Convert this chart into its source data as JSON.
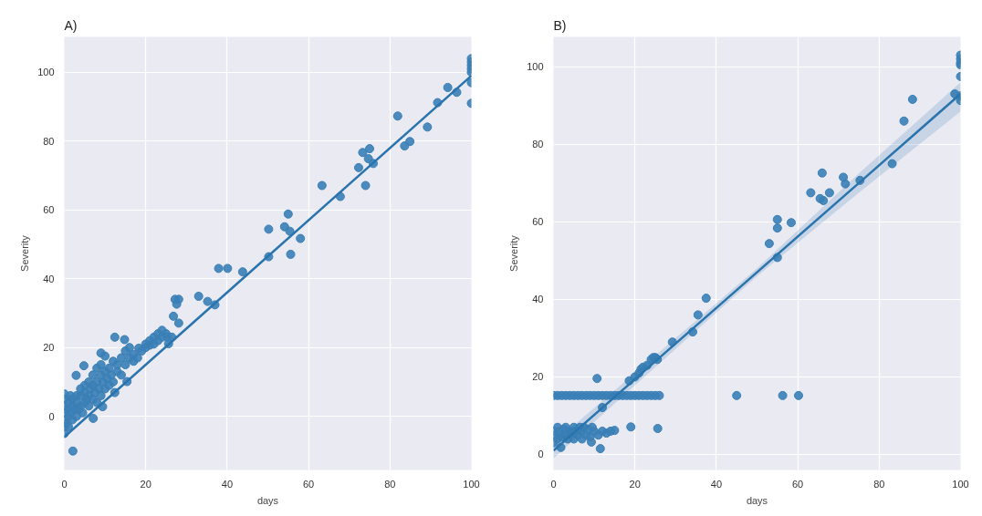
{
  "chart_data": [
    {
      "type": "scatter",
      "title": "A)",
      "xlabel": "days",
      "ylabel": "Severity",
      "xlim": [
        0,
        100
      ],
      "ylim": [
        -15.6,
        110.3
      ],
      "xticks": [
        0,
        20,
        40,
        60,
        80,
        100
      ],
      "yticks": [
        0,
        20,
        40,
        60,
        80,
        100
      ],
      "grid": true,
      "series": [
        {
          "marker": "circle",
          "color": "#3a7fb6",
          "x": [
            2.1,
            7.1,
            9.4,
            2.9,
            4.8,
            12.4,
            14.8,
            9,
            10,
            12.4,
            15.4,
            18.3,
            21,
            23,
            25.3,
            25.6,
            26.4,
            26.8,
            27.2,
            28.1,
            27.6,
            28.1,
            33,
            35.2,
            37,
            37.9,
            40.1,
            43.8,
            50.2,
            50.2,
            54.1,
            55,
            55.4,
            55.6,
            58,
            63.3,
            67.8,
            72.3,
            73.3,
            74,
            75,
            74.7,
            75.9,
            81.9,
            83.6,
            84.9,
            89.2,
            91.7,
            94.2,
            96.4,
            100,
            100,
            100,
            100,
            100,
            100,
            100,
            0,
            0,
            0,
            0,
            0,
            0,
            0,
            0.5,
            0.5,
            1,
            1,
            1,
            1.5,
            1.5,
            2,
            2,
            2,
            2.5,
            3,
            3,
            3,
            3.5,
            4,
            4,
            4,
            4.5,
            5,
            5,
            5,
            5.5,
            6,
            6,
            6,
            6.5,
            7,
            7,
            7,
            7.5,
            8,
            8,
            8,
            8.5,
            9,
            9,
            9,
            9.5,
            10,
            10,
            10.5,
            11,
            11,
            11.5,
            12,
            12,
            13,
            13,
            14,
            14,
            15,
            15,
            16,
            16,
            17,
            17,
            18,
            19,
            20,
            20,
            21,
            22,
            22,
            23,
            24,
            24,
            25
          ],
          "values": [
            -10.1,
            -0.6,
            2.8,
            11.9,
            14.7,
            23,
            22.3,
            18.4,
            17.5,
            6.9,
            10.1,
            19.8,
            20.7,
            22,
            23,
            21.1,
            23,
            29.1,
            34,
            34,
            32.6,
            27.1,
            34.9,
            33.4,
            32.4,
            43,
            43,
            42,
            54.4,
            46.4,
            55.1,
            58.8,
            53.8,
            47.1,
            51.7,
            67.1,
            63.9,
            72.3,
            76.7,
            67.1,
            77.8,
            74.9,
            73.5,
            87.3,
            78.6,
            79.9,
            84.1,
            91.2,
            95.6,
            94.2,
            91,
            97,
            100,
            101,
            102,
            103,
            104,
            -5,
            -3,
            -1,
            1,
            3,
            5,
            6.5,
            -2,
            2,
            0,
            4,
            -3,
            1,
            6,
            -1,
            3,
            5,
            2,
            0,
            4,
            6,
            2,
            3,
            6,
            8,
            1,
            4,
            7,
            9,
            5,
            3,
            6,
            10,
            8,
            5,
            9,
            12,
            7,
            4,
            10,
            14,
            8,
            6,
            12,
            15,
            10,
            8,
            13,
            11,
            9,
            14,
            12,
            10,
            16,
            13,
            15,
            12,
            17,
            15,
            19,
            17,
            20,
            16,
            18,
            17,
            19,
            21,
            20,
            22,
            21,
            23,
            24,
            25,
            23,
            24
          ]
        },
        {
          "type": "line",
          "marker": "none",
          "color": "#2a74ad",
          "x": [
            0,
            100
          ],
          "values": [
            -6,
            99
          ]
        }
      ]
    },
    {
      "type": "scatter",
      "title": "B)",
      "xlabel": "days",
      "ylabel": "Severity",
      "xlim": [
        0,
        100
      ],
      "ylim": [
        -4,
        107.7
      ],
      "xticks": [
        0,
        20,
        40,
        60,
        80,
        100
      ],
      "yticks": [
        0,
        20,
        40,
        60,
        80,
        100
      ],
      "grid": true,
      "series": [
        {
          "marker": "circle",
          "color": "#3a7fb6",
          "x": [
            0,
            1,
            2,
            3,
            4,
            5,
            6,
            7,
            8,
            9,
            10,
            11,
            12,
            13,
            14,
            15,
            16,
            17,
            18,
            19,
            20,
            21,
            22,
            23,
            24,
            25,
            26,
            45,
            56.3,
            60.2,
            0,
            0,
            0.5,
            1,
            1,
            1.5,
            2,
            2.5,
            3,
            3,
            3.5,
            4,
            4.5,
            5,
            5,
            5.5,
            6,
            6.5,
            7,
            7,
            7.5,
            8,
            8.5,
            9,
            9.5,
            10,
            11,
            12,
            13,
            14,
            15,
            1.8,
            11.5,
            9.3,
            10.7,
            12,
            19,
            25.6,
            18.6,
            20,
            21,
            21.5,
            22,
            23,
            24,
            24.5,
            25,
            25.5,
            29.2,
            34.2,
            35.5,
            37.5,
            53,
            55,
            55,
            55,
            58.4,
            63.2,
            65.5,
            66,
            66.3,
            67.8,
            71.2,
            71.7,
            75.3,
            83.2,
            86.1,
            88.2,
            98.6,
            100,
            100,
            100,
            100,
            100,
            100,
            100
          ],
          "values": [
            15.2,
            15.2,
            15.2,
            15.2,
            15.2,
            15.2,
            15.2,
            15.2,
            15.2,
            15.2,
            15.2,
            15.2,
            15.2,
            15.2,
            15.2,
            15.2,
            15.2,
            15.2,
            15.2,
            15.2,
            15.2,
            15.2,
            15.2,
            15.2,
            15.2,
            15.2,
            15.2,
            15.2,
            15.2,
            15.2,
            3,
            6,
            5,
            4,
            7,
            6,
            4.5,
            6.5,
            5,
            7,
            4,
            6,
            5.5,
            4,
            7,
            6,
            5,
            7,
            4,
            6,
            7,
            5,
            6.5,
            4.5,
            7,
            6,
            5,
            6,
            5.5,
            6,
            6.2,
            1.8,
            1.5,
            3.2,
            19.6,
            12.1,
            7.1,
            6.7,
            19,
            20,
            21,
            22,
            22.5,
            23,
            24.5,
            25,
            25,
            24.5,
            29,
            31.6,
            36,
            40.3,
            54.4,
            60.6,
            58.4,
            50.8,
            59.8,
            67.5,
            66,
            72.6,
            65.5,
            67.5,
            71.5,
            69.8,
            70.7,
            75,
            86,
            91.6,
            93,
            91.3,
            92.5,
            97.5,
            100.5,
            101,
            102,
            103
          ]
        },
        {
          "type": "line",
          "marker": "none",
          "color": "#2a74ad",
          "x": [
            0,
            25,
            50,
            75,
            100
          ],
          "values": [
            1,
            24,
            47,
            70,
            93
          ],
          "lower": [
            -1,
            22.5,
            46,
            67.5,
            88.5
          ],
          "upper": [
            3,
            25.5,
            48,
            72.5,
            96
          ]
        }
      ]
    }
  ]
}
